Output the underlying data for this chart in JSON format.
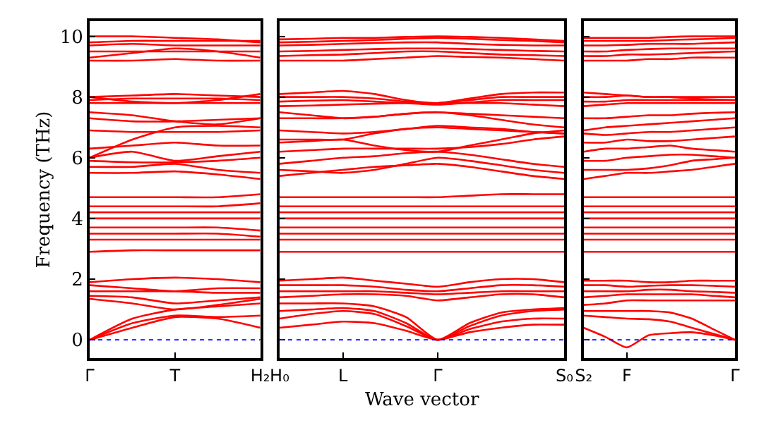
{
  "chart_data": [
    {
      "type": "line",
      "color": "#ff0000",
      "ylabel": "Frequency (THz)",
      "categories": [
        "Γ",
        null,
        "T",
        null,
        "H₂"
      ],
      "ylim": [
        -0.6,
        10.5
      ],
      "yticks": [
        0,
        2,
        4,
        6,
        8,
        10
      ],
      "ref_lines": [
        {
          "axis": "y",
          "value": 0,
          "color": "#0000ff",
          "line_style": "dotted"
        }
      ],
      "series": [
        {
          "values": [
            0,
            0.4,
            0.75,
            0.7,
            0.4
          ]
        },
        {
          "values": [
            0,
            0.55,
            0.8,
            0.75,
            0.8
          ]
        },
        {
          "values": [
            0,
            0.7,
            1.0,
            1.1,
            1.2
          ]
        },
        {
          "values": [
            1.35,
            1.2,
            1.0,
            1.15,
            1.35
          ]
        },
        {
          "values": [
            1.45,
            1.4,
            1.2,
            1.3,
            1.4
          ]
        },
        {
          "values": [
            1.6,
            1.6,
            1.6,
            1.55,
            1.55
          ]
        },
        {
          "values": [
            1.8,
            1.7,
            1.6,
            1.7,
            1.7
          ]
        },
        {
          "values": [
            1.9,
            2.0,
            2.05,
            2.0,
            1.9
          ]
        },
        {
          "values": [
            2.9,
            2.95,
            2.95,
            2.95,
            2.95
          ]
        },
        {
          "values": [
            3.3,
            3.3,
            3.3,
            3.3,
            3.3
          ]
        },
        {
          "values": [
            3.5,
            3.5,
            3.5,
            3.5,
            3.4
          ]
        },
        {
          "values": [
            3.7,
            3.7,
            3.7,
            3.7,
            3.6
          ]
        },
        {
          "values": [
            4.0,
            4.0,
            4.0,
            4.0,
            4.0
          ]
        },
        {
          "values": [
            4.2,
            4.2,
            4.2,
            4.2,
            4.2
          ]
        },
        {
          "values": [
            4.4,
            4.4,
            4.4,
            4.4,
            4.5
          ]
        },
        {
          "values": [
            4.7,
            4.7,
            4.7,
            4.7,
            4.8
          ]
        },
        {
          "values": [
            5.5,
            5.5,
            5.55,
            5.45,
            5.3
          ]
        },
        {
          "values": [
            5.7,
            5.7,
            5.8,
            5.6,
            5.5
          ]
        },
        {
          "values": [
            5.9,
            5.85,
            5.85,
            5.9,
            6.0
          ]
        },
        {
          "values": [
            6.0,
            6.2,
            5.9,
            6.05,
            6.2
          ]
        },
        {
          "values": [
            6.3,
            6.4,
            6.5,
            6.4,
            6.4
          ]
        },
        {
          "values": [
            6.0,
            6.6,
            7.0,
            7.05,
            7.0
          ]
        },
        {
          "values": [
            6.9,
            6.85,
            6.85,
            6.85,
            6.9
          ]
        },
        {
          "values": [
            7.3,
            7.2,
            7.2,
            7.25,
            7.3
          ]
        },
        {
          "values": [
            7.5,
            7.4,
            7.2,
            7.1,
            7.3
          ]
        },
        {
          "values": [
            7.8,
            7.8,
            7.8,
            7.8,
            7.8
          ]
        },
        {
          "values": [
            7.9,
            7.95,
            7.95,
            7.95,
            7.9
          ]
        },
        {
          "values": [
            8.0,
            8.05,
            8.1,
            8.05,
            8.0
          ]
        },
        {
          "values": [
            8.0,
            7.85,
            7.8,
            7.9,
            8.1
          ]
        },
        {
          "values": [
            9.2,
            9.2,
            9.25,
            9.2,
            9.2
          ]
        },
        {
          "values": [
            9.3,
            9.45,
            9.6,
            9.5,
            9.3
          ]
        },
        {
          "values": [
            9.5,
            9.5,
            9.5,
            9.5,
            9.5
          ]
        },
        {
          "values": [
            9.7,
            9.75,
            9.7,
            9.7,
            9.7
          ]
        },
        {
          "values": [
            9.8,
            9.85,
            9.85,
            9.85,
            9.85
          ]
        },
        {
          "values": [
            10.0,
            10.0,
            9.95,
            9.9,
            9.8
          ]
        }
      ]
    },
    {
      "type": "line",
      "color": "#ff0000",
      "xlabel": "Wave vector",
      "categories": [
        "H₀",
        null,
        "L",
        null,
        null,
        "Γ",
        null,
        null,
        null,
        "S₀"
      ],
      "ylim": [
        -0.6,
        10.5
      ],
      "yticks": [
        {
          "value": 0,
          "label": null
        },
        {
          "value": 2,
          "label": null
        },
        {
          "value": 4,
          "label": null
        },
        {
          "value": 6,
          "label": null
        },
        {
          "value": 8,
          "label": null
        },
        {
          "value": 10,
          "label": null
        }
      ],
      "tick_labels": "x",
      "ref_lines": [
        {
          "axis": "y",
          "value": 0,
          "color": "#0000ff",
          "line_style": "dotted"
        }
      ],
      "series": [
        {
          "values": [
            0.4,
            0.5,
            0.6,
            0.55,
            0.3,
            0,
            0.25,
            0.4,
            0.5,
            0.5
          ]
        },
        {
          "values": [
            0.7,
            0.85,
            0.95,
            0.85,
            0.45,
            0,
            0.35,
            0.6,
            0.7,
            0.7
          ]
        },
        {
          "values": [
            0.95,
            1.0,
            1.05,
            0.95,
            0.55,
            0,
            0.45,
            0.8,
            0.95,
            1.0
          ]
        },
        {
          "values": [
            1.2,
            1.2,
            1.2,
            1.1,
            0.75,
            0,
            0.55,
            0.9,
            1.0,
            1.05
          ]
        },
        {
          "values": [
            1.4,
            1.45,
            1.5,
            1.5,
            1.45,
            1.3,
            1.4,
            1.5,
            1.5,
            1.4
          ]
        },
        {
          "values": [
            1.6,
            1.6,
            1.6,
            1.6,
            1.55,
            1.5,
            1.55,
            1.6,
            1.6,
            1.6
          ]
        },
        {
          "values": [
            1.8,
            1.8,
            1.8,
            1.75,
            1.65,
            1.6,
            1.7,
            1.8,
            1.8,
            1.75
          ]
        },
        {
          "values": [
            1.95,
            2.0,
            2.05,
            1.95,
            1.85,
            1.75,
            1.9,
            2.0,
            2.0,
            1.9
          ]
        },
        {
          "values": [
            2.9,
            2.9,
            2.9,
            2.9,
            2.9,
            2.9,
            2.9,
            2.9,
            2.9,
            2.9
          ]
        },
        {
          "values": [
            3.3,
            3.3,
            3.3,
            3.3,
            3.3,
            3.3,
            3.3,
            3.3,
            3.3,
            3.3
          ]
        },
        {
          "values": [
            3.5,
            3.5,
            3.5,
            3.5,
            3.5,
            3.5,
            3.5,
            3.5,
            3.5,
            3.5
          ]
        },
        {
          "values": [
            3.7,
            3.7,
            3.7,
            3.7,
            3.7,
            3.7,
            3.7,
            3.7,
            3.7,
            3.7
          ]
        },
        {
          "values": [
            4.0,
            4.0,
            4.0,
            4.0,
            4.0,
            4.0,
            4.0,
            4.0,
            4.0,
            4.0
          ]
        },
        {
          "values": [
            4.2,
            4.2,
            4.2,
            4.2,
            4.2,
            4.2,
            4.2,
            4.2,
            4.2,
            4.2
          ]
        },
        {
          "values": [
            4.4,
            4.4,
            4.4,
            4.4,
            4.4,
            4.4,
            4.4,
            4.4,
            4.4,
            4.4
          ]
        },
        {
          "values": [
            4.7,
            4.7,
            4.7,
            4.7,
            4.7,
            4.7,
            4.75,
            4.8,
            4.8,
            4.8
          ]
        },
        {
          "values": [
            5.4,
            5.5,
            5.6,
            5.7,
            5.75,
            5.8,
            5.7,
            5.55,
            5.4,
            5.3
          ]
        },
        {
          "values": [
            5.6,
            5.55,
            5.5,
            5.6,
            5.8,
            6.0,
            5.9,
            5.75,
            5.6,
            5.5
          ]
        },
        {
          "values": [
            5.8,
            5.9,
            6.0,
            6.05,
            6.15,
            6.2,
            6.1,
            5.95,
            5.8,
            5.7
          ]
        },
        {
          "values": [
            6.2,
            6.25,
            6.3,
            6.3,
            6.3,
            6.3,
            6.35,
            6.45,
            6.6,
            6.7
          ]
        },
        {
          "values": [
            6.5,
            6.55,
            6.6,
            6.4,
            6.25,
            6.2,
            6.4,
            6.6,
            6.8,
            6.9
          ]
        },
        {
          "values": [
            6.6,
            6.6,
            6.6,
            6.8,
            6.95,
            7.0,
            6.95,
            6.9,
            6.85,
            6.8
          ]
        },
        {
          "values": [
            6.9,
            6.85,
            6.8,
            6.85,
            6.95,
            7.05,
            7.0,
            6.95,
            6.85,
            6.8
          ]
        },
        {
          "values": [
            7.3,
            7.3,
            7.3,
            7.35,
            7.45,
            7.5,
            7.4,
            7.25,
            7.1,
            7.0
          ]
        },
        {
          "values": [
            7.5,
            7.4,
            7.3,
            7.35,
            7.45,
            7.5,
            7.45,
            7.4,
            7.35,
            7.3
          ]
        },
        {
          "values": [
            7.7,
            7.72,
            7.75,
            7.78,
            7.8,
            7.8,
            7.8,
            7.8,
            7.75,
            7.7
          ]
        },
        {
          "values": [
            7.85,
            7.88,
            7.9,
            7.85,
            7.8,
            7.75,
            7.82,
            7.9,
            7.9,
            7.9
          ]
        },
        {
          "values": [
            8.0,
            8.0,
            8.0,
            7.95,
            7.85,
            7.8,
            7.9,
            8.0,
            8.0,
            8.0
          ]
        },
        {
          "values": [
            8.1,
            8.15,
            8.2,
            8.1,
            7.9,
            7.8,
            7.95,
            8.1,
            8.15,
            8.15
          ]
        },
        {
          "values": [
            9.2,
            9.2,
            9.2,
            9.25,
            9.3,
            9.35,
            9.32,
            9.3,
            9.25,
            9.2
          ]
        },
        {
          "values": [
            9.35,
            9.38,
            9.4,
            9.45,
            9.5,
            9.5,
            9.45,
            9.4,
            9.38,
            9.35
          ]
        },
        {
          "values": [
            9.5,
            9.52,
            9.55,
            9.58,
            9.6,
            9.6,
            9.58,
            9.55,
            9.52,
            9.5
          ]
        },
        {
          "values": [
            9.7,
            9.72,
            9.75,
            9.78,
            9.8,
            9.8,
            9.75,
            9.72,
            9.7,
            9.7
          ]
        },
        {
          "values": [
            9.8,
            9.82,
            9.85,
            9.88,
            9.92,
            9.95,
            9.92,
            9.88,
            9.85,
            9.8
          ]
        },
        {
          "values": [
            9.9,
            9.92,
            9.95,
            9.95,
            9.98,
            10.0,
            9.98,
            9.95,
            9.9,
            9.85
          ]
        }
      ]
    },
    {
      "type": "line",
      "color": "#ff0000",
      "categories": [
        "S₂",
        null,
        "F",
        null,
        null,
        null,
        null,
        "Γ"
      ],
      "ylim": [
        -0.6,
        10.5
      ],
      "yticks": [
        {
          "value": 0,
          "label": null
        },
        {
          "value": 2,
          "label": null
        },
        {
          "value": 4,
          "label": null
        },
        {
          "value": 6,
          "label": null
        },
        {
          "value": 8,
          "label": null
        },
        {
          "value": 10,
          "label": null
        }
      ],
      "tick_labels": "x",
      "ref_lines": [
        {
          "axis": "y",
          "value": 0,
          "color": "#0000ff",
          "line_style": "dotted"
        }
      ],
      "series": [
        {
          "values": [
            0.4,
            0.1,
            -0.25,
            0.15,
            0.22,
            0.25,
            0.15,
            0
          ]
        },
        {
          "values": [
            0.8,
            0.75,
            0.7,
            0.68,
            0.6,
            0.4,
            0.2,
            0
          ]
        },
        {
          "values": [
            0.95,
            0.95,
            0.95,
            0.95,
            0.9,
            0.7,
            0.35,
            0
          ]
        },
        {
          "values": [
            1.15,
            1.2,
            1.3,
            1.3,
            1.3,
            1.3,
            1.3,
            1.3
          ]
        },
        {
          "values": [
            1.4,
            1.45,
            1.5,
            1.5,
            1.5,
            1.5,
            1.45,
            1.4
          ]
        },
        {
          "values": [
            1.6,
            1.6,
            1.6,
            1.65,
            1.65,
            1.6,
            1.58,
            1.55
          ]
        },
        {
          "values": [
            1.8,
            1.8,
            1.75,
            1.78,
            1.8,
            1.8,
            1.78,
            1.75
          ]
        },
        {
          "values": [
            1.95,
            1.95,
            1.95,
            1.9,
            1.9,
            1.95,
            1.95,
            1.95
          ]
        },
        {
          "values": [
            2.9,
            2.9,
            2.9,
            2.9,
            2.9,
            2.9,
            2.9,
            2.9
          ]
        },
        {
          "values": [
            3.3,
            3.3,
            3.3,
            3.3,
            3.3,
            3.3,
            3.3,
            3.3
          ]
        },
        {
          "values": [
            3.5,
            3.5,
            3.5,
            3.5,
            3.5,
            3.5,
            3.5,
            3.5
          ]
        },
        {
          "values": [
            3.7,
            3.7,
            3.7,
            3.7,
            3.7,
            3.7,
            3.7,
            3.7
          ]
        },
        {
          "values": [
            4.0,
            4.0,
            4.0,
            4.0,
            4.0,
            4.0,
            4.0,
            4.0
          ]
        },
        {
          "values": [
            4.2,
            4.2,
            4.2,
            4.2,
            4.2,
            4.2,
            4.2,
            4.2
          ]
        },
        {
          "values": [
            4.4,
            4.4,
            4.4,
            4.4,
            4.4,
            4.4,
            4.4,
            4.4
          ]
        },
        {
          "values": [
            4.7,
            4.7,
            4.7,
            4.7,
            4.7,
            4.7,
            4.7,
            4.7
          ]
        },
        {
          "values": [
            5.3,
            5.4,
            5.5,
            5.5,
            5.55,
            5.6,
            5.7,
            5.8
          ]
        },
        {
          "values": [
            5.6,
            5.6,
            5.6,
            5.65,
            5.75,
            5.9,
            5.95,
            6.0
          ]
        },
        {
          "values": [
            5.9,
            5.9,
            6.0,
            6.05,
            6.1,
            6.1,
            6.05,
            6.0
          ]
        },
        {
          "values": [
            6.2,
            6.3,
            6.3,
            6.35,
            6.4,
            6.3,
            6.25,
            6.2
          ]
        },
        {
          "values": [
            6.5,
            6.5,
            6.6,
            6.55,
            6.55,
            6.6,
            6.65,
            6.7
          ]
        },
        {
          "values": [
            6.8,
            6.75,
            6.8,
            6.85,
            6.85,
            6.9,
            6.95,
            7.0
          ]
        },
        {
          "values": [
            6.9,
            7.0,
            7.05,
            7.1,
            7.15,
            7.2,
            7.25,
            7.3
          ]
        },
        {
          "values": [
            7.3,
            7.3,
            7.35,
            7.4,
            7.4,
            7.45,
            7.48,
            7.5
          ]
        },
        {
          "values": [
            7.7,
            7.75,
            7.8,
            7.8,
            7.8,
            7.8,
            7.8,
            7.8
          ]
        },
        {
          "values": [
            7.85,
            7.85,
            7.9,
            7.9,
            7.9,
            7.9,
            7.9,
            7.9
          ]
        },
        {
          "values": [
            8.0,
            8.0,
            8.05,
            8.0,
            8.0,
            7.95,
            7.92,
            7.9
          ]
        },
        {
          "values": [
            8.15,
            8.1,
            8.05,
            8.0,
            8.0,
            8.0,
            8.0,
            8.0
          ]
        },
        {
          "values": [
            9.2,
            9.2,
            9.2,
            9.25,
            9.25,
            9.3,
            9.3,
            9.3
          ]
        },
        {
          "values": [
            9.35,
            9.35,
            9.4,
            9.4,
            9.42,
            9.45,
            9.48,
            9.5
          ]
        },
        {
          "values": [
            9.5,
            9.5,
            9.55,
            9.58,
            9.6,
            9.6,
            9.6,
            9.6
          ]
        },
        {
          "values": [
            9.7,
            9.7,
            9.72,
            9.75,
            9.75,
            9.75,
            9.78,
            9.8
          ]
        },
        {
          "values": [
            9.85,
            9.85,
            9.85,
            9.85,
            9.88,
            9.9,
            9.92,
            9.95
          ]
        },
        {
          "values": [
            9.95,
            9.95,
            9.95,
            9.95,
            9.98,
            10.0,
            10.0,
            10.0
          ]
        }
      ]
    }
  ]
}
